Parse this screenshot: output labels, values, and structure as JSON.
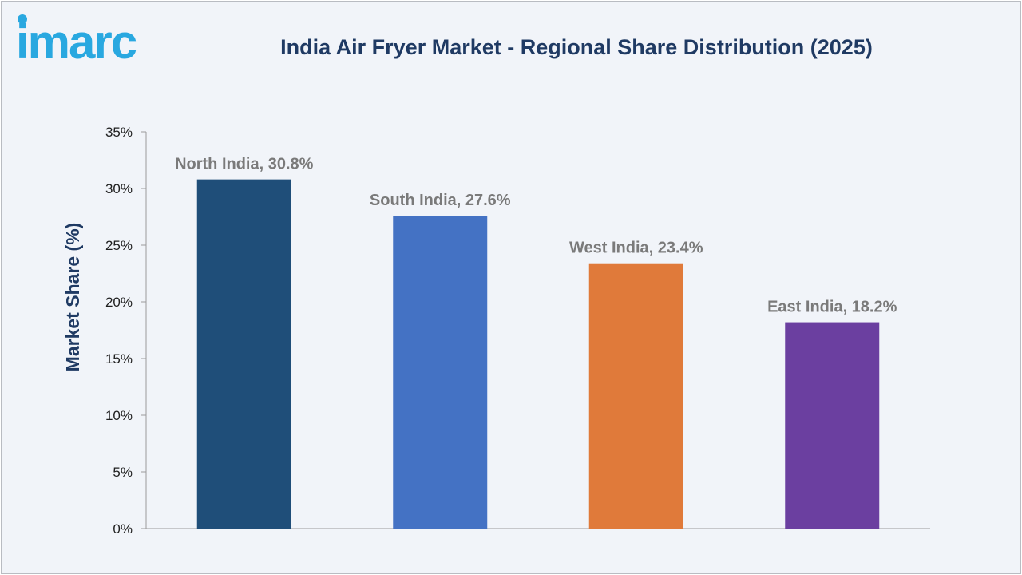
{
  "header": {
    "brand": "imarc",
    "title": "India Air Fryer Market - Regional Share Distribution (2025)"
  },
  "colors": {
    "brand": "#29a8e0",
    "title": "#1f3a63",
    "background": "#f1f4f9"
  },
  "chart_data": {
    "type": "bar",
    "title": "India Air Fryer Market - Regional Share Distribution (2025)",
    "xlabel": "",
    "ylabel": "Market Share (%)",
    "ylim": [
      0,
      35
    ],
    "yticks": [
      0,
      5,
      10,
      15,
      20,
      25,
      30,
      35
    ],
    "ytick_labels": [
      "0%",
      "5%",
      "10%",
      "15%",
      "20%",
      "25%",
      "30%",
      "35%"
    ],
    "grid": false,
    "legend": "none",
    "categories": [
      "North India",
      "South India",
      "West India",
      "East India"
    ],
    "values": [
      30.8,
      27.6,
      23.4,
      18.2
    ],
    "data_labels": [
      "North India, 30.8%",
      "South India, 27.6%",
      "West India, 23.4%",
      "East India, 18.2%"
    ],
    "bar_colors": [
      "#1f4e79",
      "#4472c4",
      "#e07a3a",
      "#6b3fa0"
    ]
  }
}
